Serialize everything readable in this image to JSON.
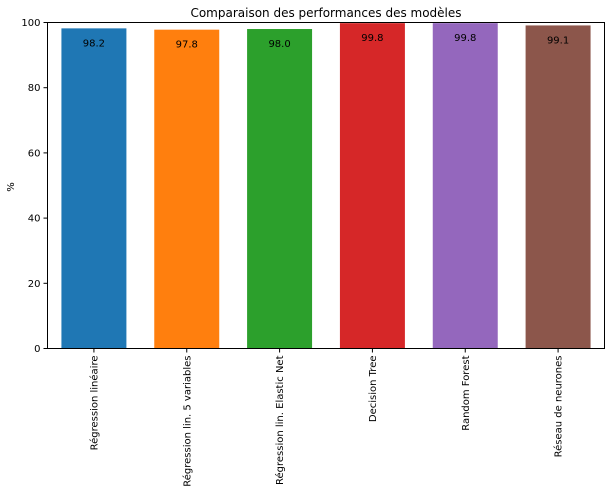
{
  "chart_data": {
    "type": "bar",
    "title": "Comparaison des performances des modèles",
    "xlabel": "",
    "ylabel": "%",
    "ylim": [
      0,
      100
    ],
    "yticks": [
      "0",
      "20",
      "40",
      "60",
      "80",
      "100"
    ],
    "grid": false,
    "categories": [
      "Régression linéaire",
      "Régression lin. 5 variables",
      "Régression lin. Elastic Net",
      "Decision Tree",
      "Random Forest",
      "Réseau de neurones"
    ],
    "values": [
      98.2,
      97.8,
      98.0,
      99.8,
      99.8,
      99.1
    ],
    "value_labels": [
      "98.2",
      "97.8",
      "98.0",
      "99.8",
      "99.8",
      "99.1"
    ],
    "colors": [
      "#1f77b4",
      "#ff7f0e",
      "#2ca02c",
      "#d62728",
      "#9467bd",
      "#8c564b"
    ]
  }
}
